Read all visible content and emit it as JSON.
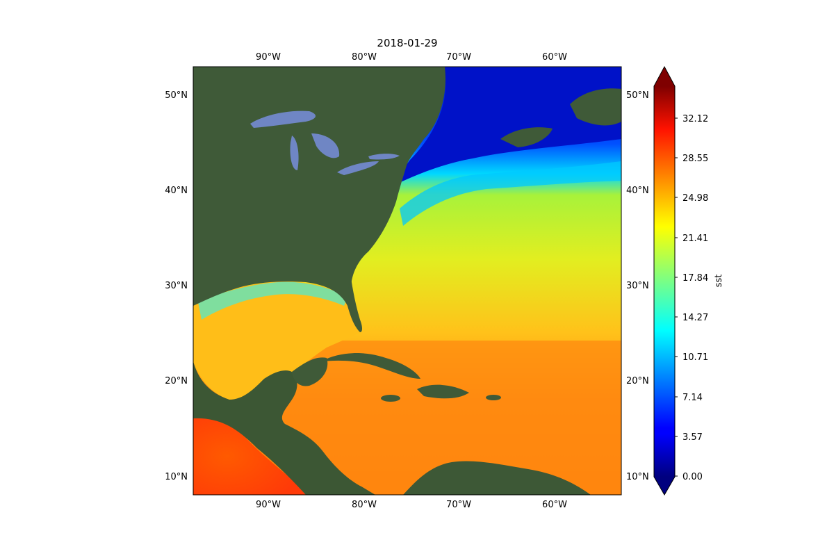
{
  "map": {
    "title": "2018-01-29",
    "lon_ticks": [
      "90°W",
      "80°W",
      "70°W",
      "60°W"
    ],
    "lon_values": [
      -90,
      -80,
      -70,
      -60
    ],
    "lat_ticks": [
      "10°N",
      "20°N",
      "30°N",
      "40°N",
      "50°N"
    ],
    "lat_values": [
      10,
      20,
      30,
      40,
      50
    ],
    "extent": {
      "lon": [
        -98,
        -53.5
      ],
      "lat": [
        8,
        53
      ]
    },
    "gridlines": false
  },
  "colorbar": {
    "label": "sst",
    "colormap": "jet",
    "ticks": [
      "0.00",
      "3.57",
      "7.14",
      "10.71",
      "14.27",
      "17.84",
      "21.41",
      "24.98",
      "28.55",
      "32.12"
    ],
    "range": [
      0,
      35.7
    ],
    "extend": "both"
  },
  "colors": {
    "land": "#3f5a38",
    "lakes": "#6f86c4",
    "cold_ocean": "#0010c0",
    "warm_ocean": "#ff8a10"
  }
}
